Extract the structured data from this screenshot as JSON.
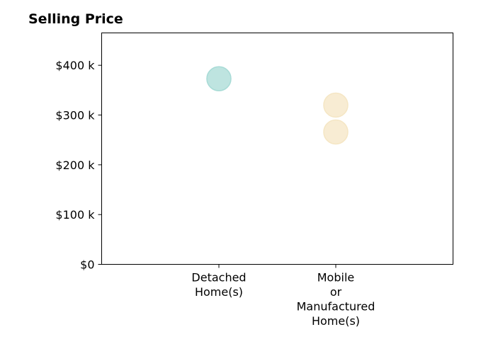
{
  "chart_data": {
    "type": "scatter",
    "title": "Selling Price",
    "xlabel": "",
    "ylabel": "",
    "categories": [
      "Detached\nHome(s)",
      "Mobile\nor\nManufactured\nHome(s)"
    ],
    "ylim": [
      0,
      465000
    ],
    "yticks": [
      {
        "value": 0,
        "label": "$0"
      },
      {
        "value": 100000,
        "label": "$100 k"
      },
      {
        "value": 200000,
        "label": "$200 k"
      },
      {
        "value": 300000,
        "label": "$300 k"
      },
      {
        "value": 400000,
        "label": "$400 k"
      }
    ],
    "points": [
      {
        "category": 0,
        "y": 373000,
        "color": "#a8dbd6"
      },
      {
        "category": 1,
        "y": 320000,
        "color": "#f5e6c4"
      },
      {
        "category": 1,
        "y": 266000,
        "color": "#f5e6c4"
      }
    ],
    "grid": false,
    "legend": "none"
  }
}
